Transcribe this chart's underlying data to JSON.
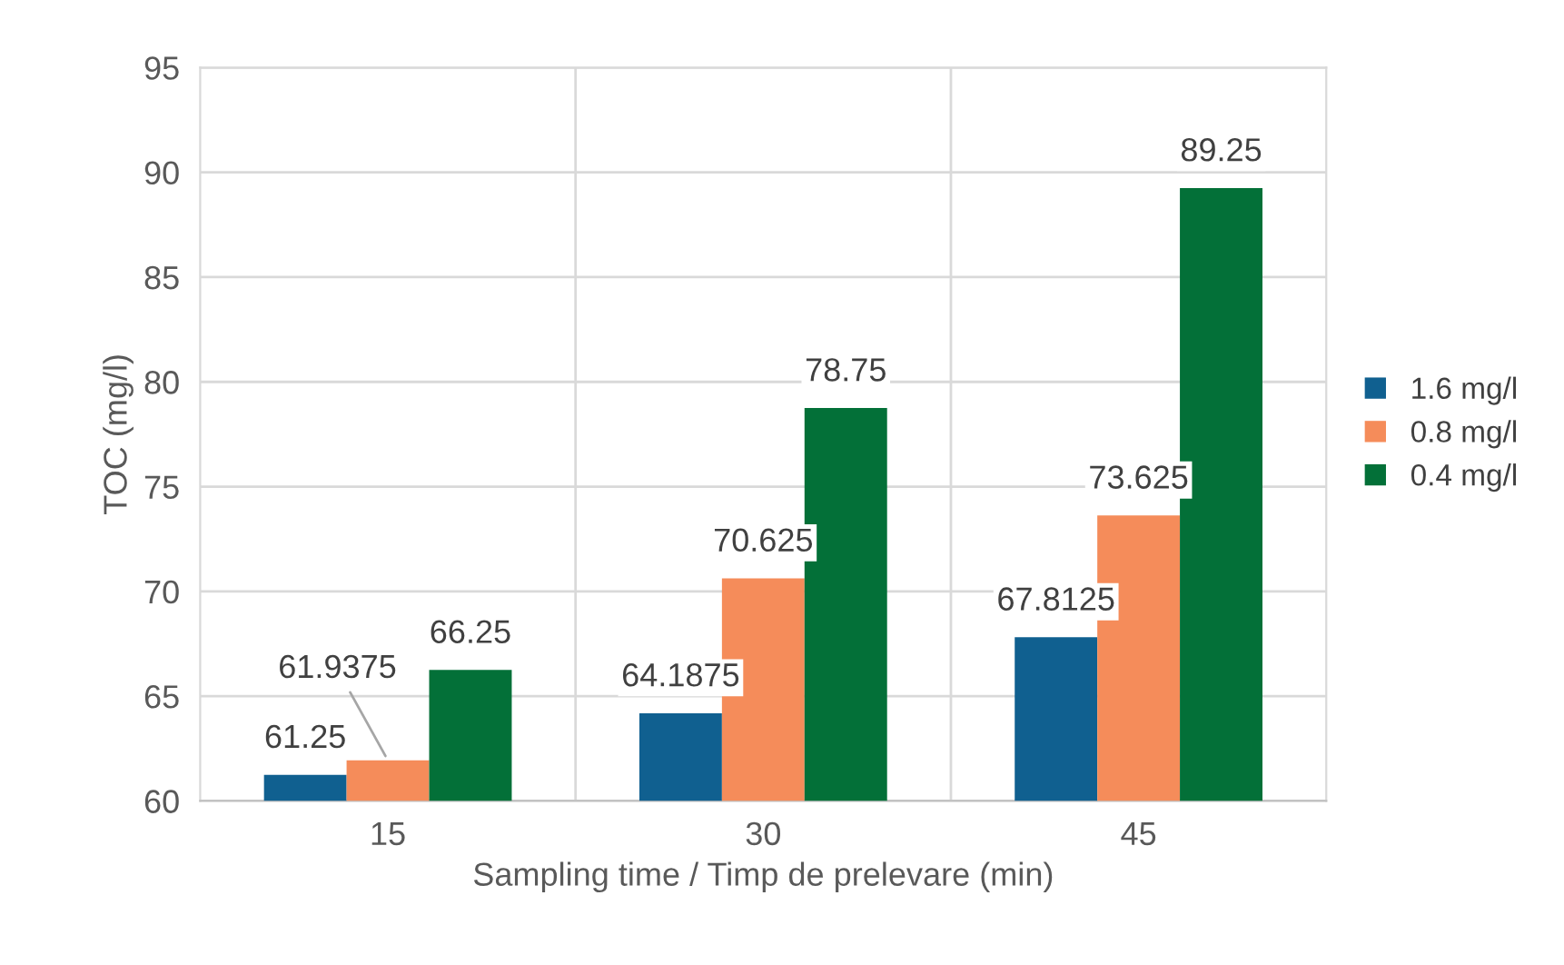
{
  "chart_data": {
    "type": "bar",
    "xlabel": "Sampling time / Timp de prelevare (min)",
    "ylabel": "TOC (mg/l)",
    "categories": [
      "15",
      "30",
      "45"
    ],
    "series": [
      {
        "name": "1.6 mg/l",
        "color": "#106090",
        "values": [
          61.25,
          64.1875,
          67.8125
        ]
      },
      {
        "name": "0.8 mg/l",
        "color": "#f58c5a",
        "values": [
          61.9375,
          70.625,
          73.625
        ]
      },
      {
        "name": "0.4 mg/l",
        "color": "#037038",
        "values": [
          66.25,
          78.75,
          89.25
        ]
      }
    ],
    "ylim": [
      60,
      95
    ],
    "yticks": [
      60,
      65,
      70,
      75,
      80,
      85,
      90,
      95
    ],
    "grid": true,
    "legend": "right",
    "data_labels": true
  }
}
